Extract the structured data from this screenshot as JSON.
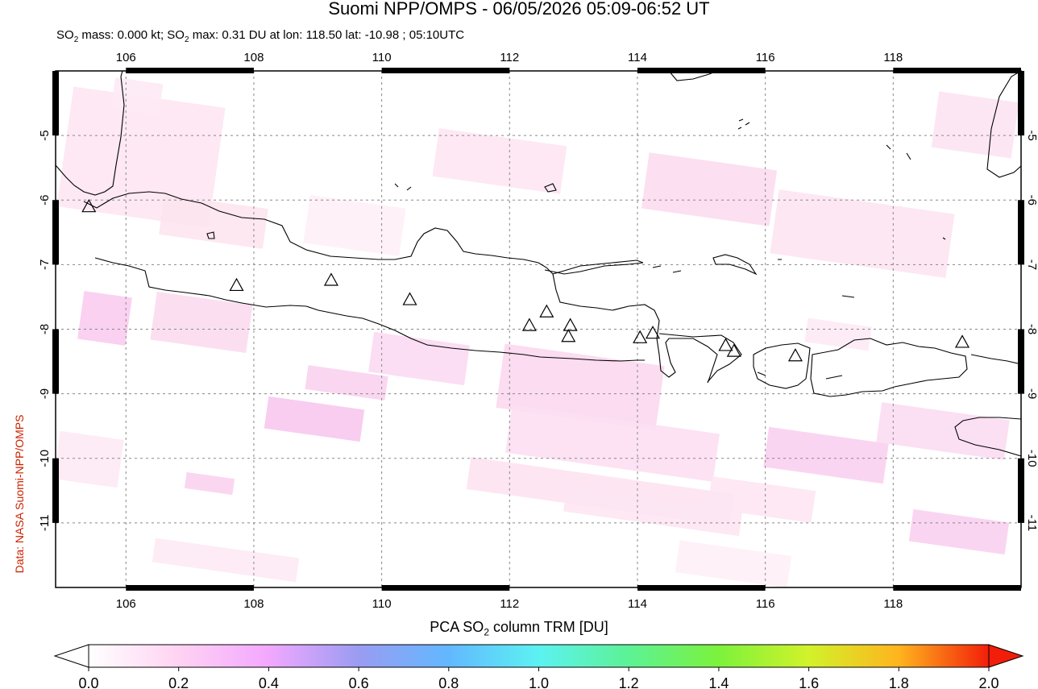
{
  "title": "Suomi NPP/OMPS - 06/05/2026 05:09-06:52 UT",
  "subtitle": {
    "p1": "SO",
    "sub1": "2",
    "p2": " mass: 0.000 kt; SO",
    "sub2": "2",
    "p3": " max: 0.31 DU at lon: 118.50 lat: -10.98 ; 05:10UTC"
  },
  "credit": "Data: NASA Suomi-NPP/OMPS",
  "map": {
    "lon_range": [
      104.9,
      120.0
    ],
    "lat_range": [
      -12.0,
      -4.0
    ],
    "lon_ticks": [
      "106",
      "108",
      "110",
      "112",
      "114",
      "116",
      "118"
    ],
    "lat_ticks": [
      "-5",
      "-6",
      "-7",
      "-8",
      "-9",
      "-10",
      "-11"
    ],
    "grid": true,
    "volcanoes": [
      {
        "lon": 105.42,
        "lat": -6.1
      },
      {
        "lon": 107.73,
        "lat": -7.32
      },
      {
        "lon": 109.21,
        "lat": -7.24
      },
      {
        "lon": 110.44,
        "lat": -7.54
      },
      {
        "lon": 112.31,
        "lat": -7.94
      },
      {
        "lon": 112.58,
        "lat": -7.73
      },
      {
        "lon": 112.95,
        "lat": -7.94
      },
      {
        "lon": 112.92,
        "lat": -8.11
      },
      {
        "lon": 114.04,
        "lat": -8.13
      },
      {
        "lon": 114.24,
        "lat": -8.06
      },
      {
        "lon": 115.38,
        "lat": -8.25
      },
      {
        "lon": 115.51,
        "lat": -8.34
      },
      {
        "lon": 116.47,
        "lat": -8.41
      },
      {
        "lon": 119.08,
        "lat": -8.2
      }
    ]
  },
  "colorbar": {
    "title_pre": "PCA SO",
    "title_sub": "2",
    "title_post": " column TRM [DU]",
    "ticks": [
      "0.0",
      "0.2",
      "0.4",
      "0.6",
      "0.8",
      "1.0",
      "1.2",
      "1.4",
      "1.6",
      "1.8",
      "2.0"
    ],
    "colors": [
      "#ffffff",
      "#ffd2f2",
      "#f2a8ff",
      "#9a9cf2",
      "#62b8ff",
      "#5cf2f2",
      "#5cf296",
      "#7cf23c",
      "#d2f22a",
      "#ffb41e",
      "#f21e0a"
    ],
    "range": [
      0.0,
      2.0
    ]
  }
}
